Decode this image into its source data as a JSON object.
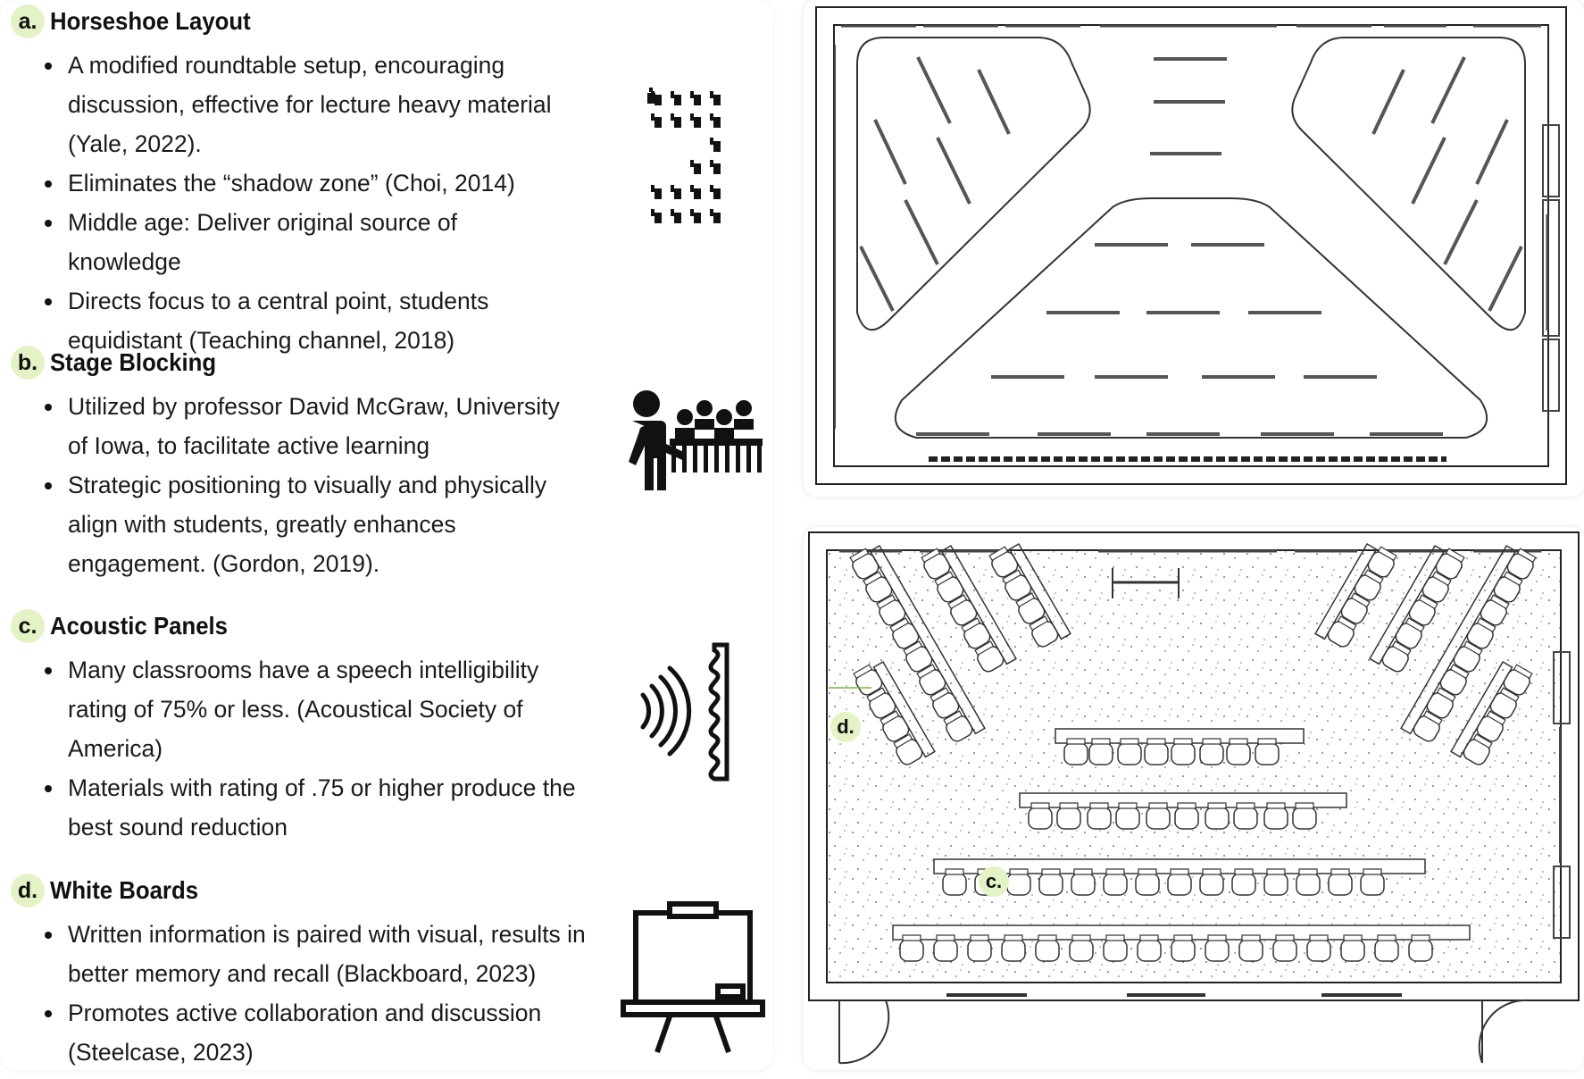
{
  "sections": [
    {
      "letter": "a.",
      "title": "Horseshoe Layout",
      "icon": "horseshoe-desks-icon",
      "bullets": [
        "A modified roundtable setup, encouraging discussion, effective for lecture heavy material (Yale, 2022).",
        "Eliminates the “shadow zone” (Choi, 2014)",
        "Middle age: Deliver original source of knowledge",
        "Directs focus to a central point, students equidistant (Teaching channel, 2018)"
      ]
    },
    {
      "letter": "b.",
      "title": "Stage Blocking",
      "icon": "teacher-students-icon",
      "bullets": [
        "Utilized by professor David McGraw,  University of Iowa, to facilitate active learning",
        "Strategic positioning to visually and physically align with students, greatly enhances engagement. (Gordon, 2019)."
      ]
    },
    {
      "letter": "c.",
      "title": "Acoustic Panels",
      "icon": "sound-panel-icon",
      "bullets": [
        "Many classrooms have a speech intelligibility rating of 75% or less. (Acoustical Society of America)",
        "Materials with rating of .75 or higher produce the best sound reduction"
      ]
    },
    {
      "letter": "d.",
      "title": "White Boards",
      "icon": "whiteboard-easel-icon",
      "bullets": [
        "Written information is paired with visual, results in better memory and recall (Blackboard, 2023)",
        "Promotes active collaboration and discussion (Steelcase, 2023)"
      ]
    }
  ],
  "plan_labels": {
    "d": "d.",
    "c": "c."
  }
}
